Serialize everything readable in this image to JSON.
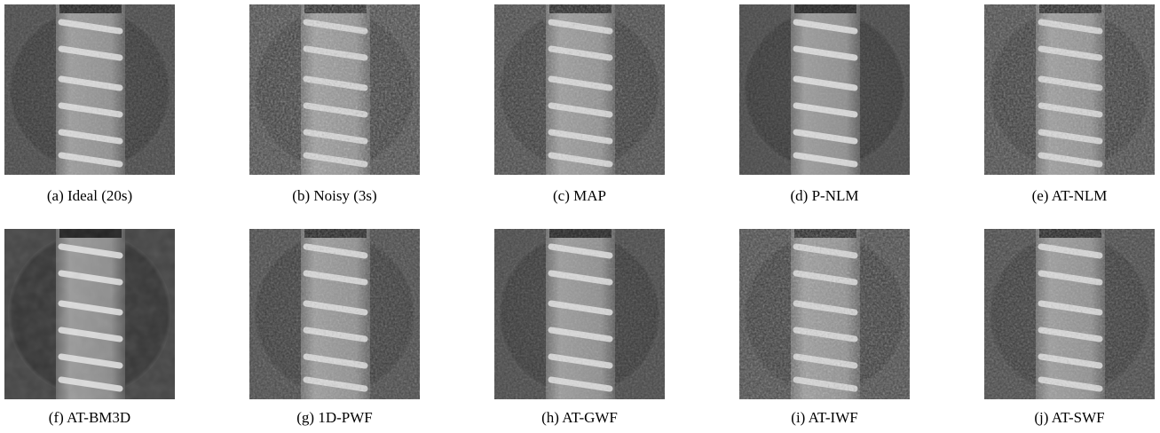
{
  "figure": {
    "captions": [
      "(a) Ideal (20s)",
      "(b) Noisy (3s)",
      "(c) MAP",
      "(d) P-NLM",
      "(e) AT-NLM",
      "(f) AT-BM3D",
      "(g) 1D-PWF",
      "(h) AT-GWF",
      "(i) AT-IWF",
      "(j) AT-SWF"
    ]
  }
}
